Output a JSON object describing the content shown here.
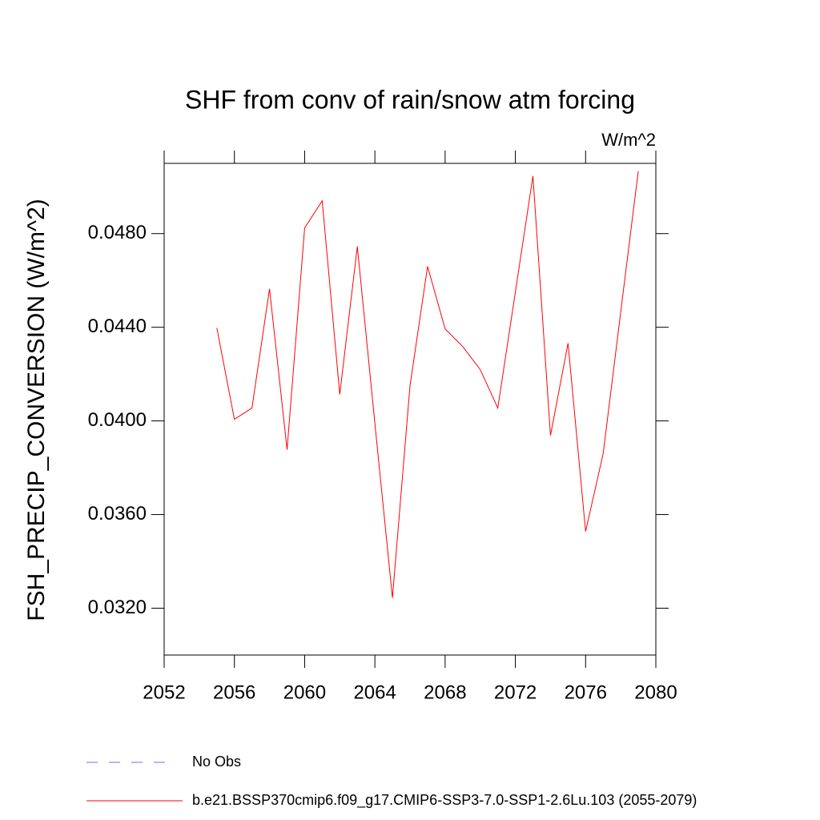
{
  "chart_data": {
    "type": "line",
    "title": "SHF from conv of rain/snow atm forcing",
    "units": "W/m^2",
    "y_label": "FSH_PRECIP_CONVERSION  (W/m^2)",
    "x": [
      2055,
      2056,
      2057,
      2058,
      2059,
      2060,
      2061,
      2062,
      2063,
      2064,
      2065,
      2066,
      2067,
      2068,
      2069,
      2070,
      2071,
      2072,
      2073,
      2074,
      2075,
      2076,
      2077,
      2078,
      2079
    ],
    "series": [
      {
        "name": "b.e21.BSSP370cmip6.f09_g17.CMIP6-SSP3-7.0-SSP1-2.6Lu.103 (2055-2079)",
        "color": "#ff0000",
        "values": [
          0.04397,
          0.04007,
          0.04055,
          0.04564,
          0.03877,
          0.04824,
          0.0494,
          0.04113,
          0.04745,
          0.0399,
          0.03244,
          0.0415,
          0.0466,
          0.04393,
          0.04318,
          0.04219,
          0.04055,
          0.0455,
          0.05046,
          0.03938,
          0.04332,
          0.03528,
          0.0386,
          0.04465,
          0.05067
        ]
      }
    ],
    "obs_legend": {
      "name": "No Obs",
      "color": "#7b68ee"
    },
    "xlim": [
      2052,
      2080
    ],
    "xticks": [
      2052,
      2056,
      2060,
      2064,
      2068,
      2072,
      2076,
      2080
    ],
    "ylim": [
      0.03,
      0.051
    ],
    "yticks": [
      {
        "value": 0.032,
        "label": "0.0320"
      },
      {
        "value": 0.036,
        "label": "0.0360"
      },
      {
        "value": 0.04,
        "label": "0.0400"
      },
      {
        "value": 0.044,
        "label": "0.0440"
      },
      {
        "value": 0.048,
        "label": "0.0480"
      }
    ]
  }
}
